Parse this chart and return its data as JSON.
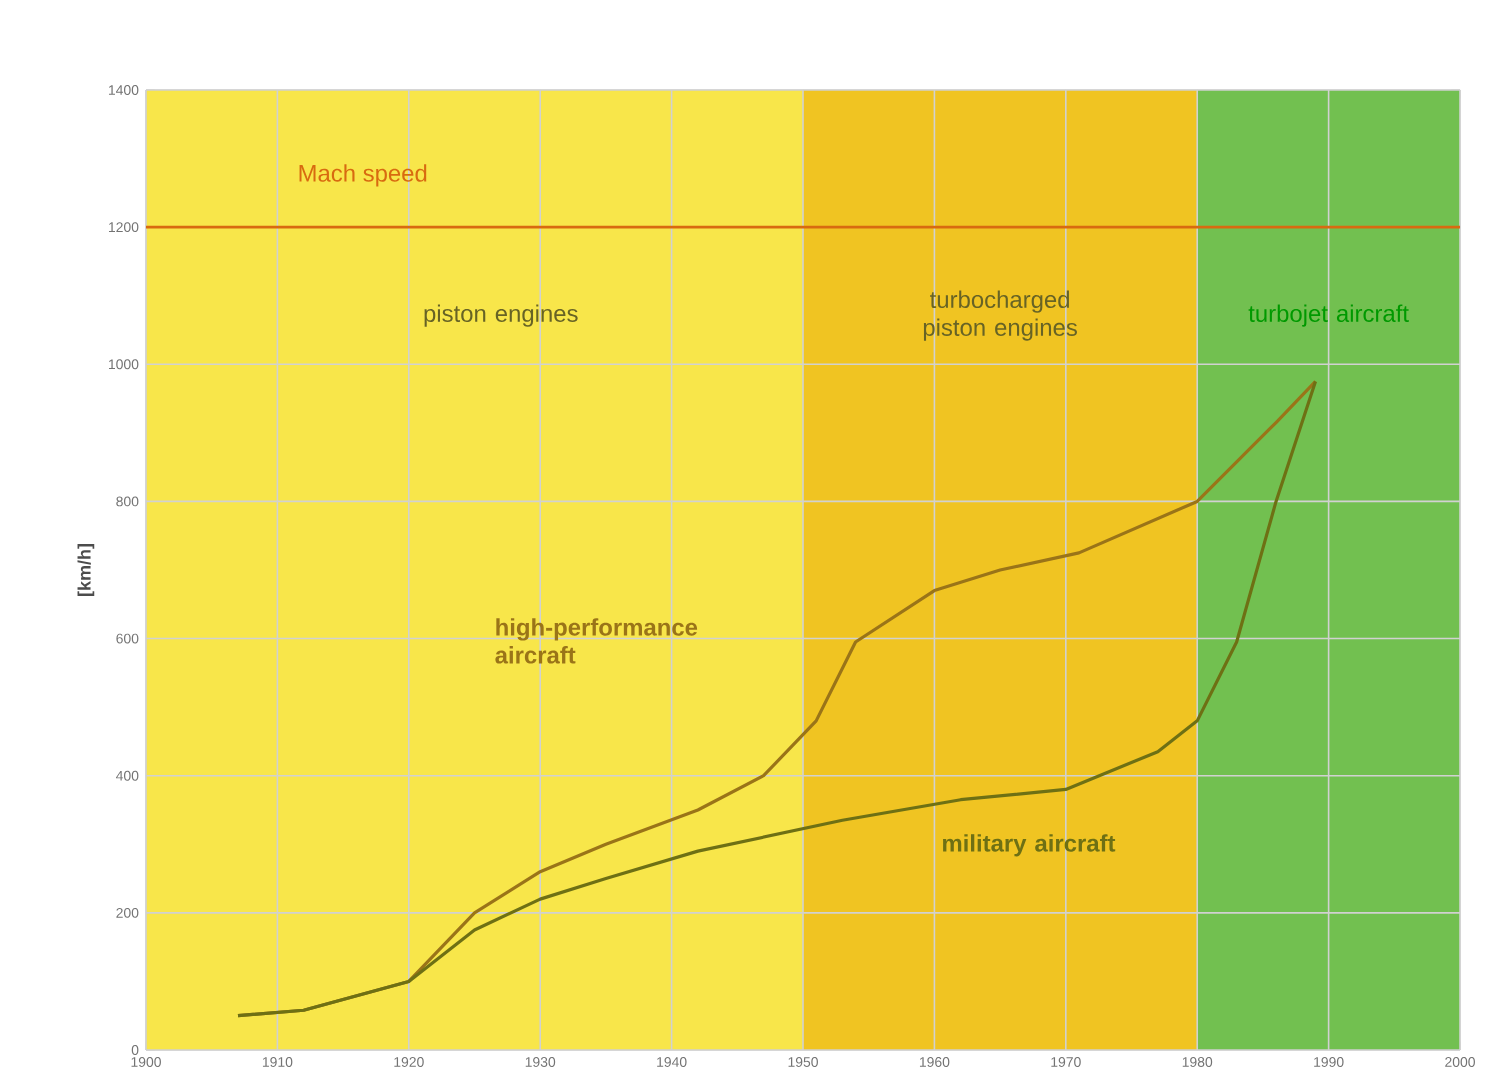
{
  "chart_data": {
    "type": "line",
    "ylabel": "[km/h]",
    "xlim": [
      1900,
      2000
    ],
    "xticks": [
      1900,
      1910,
      1920,
      1930,
      1940,
      1950,
      1960,
      1970,
      1980,
      1990,
      2000
    ],
    "ylim": [
      0,
      1400
    ],
    "yticks": [
      0,
      200,
      400,
      600,
      800,
      1000,
      1200,
      1400
    ],
    "grid": true,
    "bands": [
      {
        "axis": "x",
        "from": 1900,
        "to": 1950,
        "label": "piston engines",
        "color": "#f8e64a"
      },
      {
        "axis": "x",
        "from": 1950,
        "to": 1980,
        "label": "turbocharged piston engines",
        "color": "#f0c422"
      },
      {
        "axis": "x",
        "from": 1980,
        "to": 2000,
        "label": "turbojet aircraft",
        "color": "#72c050"
      }
    ],
    "ref_lines": [
      {
        "axis": "y",
        "value": 1200,
        "label": "Mach speed",
        "color": "#d86a10"
      }
    ],
    "series": [
      {
        "name": "high-performance aircraft",
        "color": "#9a7418",
        "x": [
          1907,
          1912,
          1920,
          1925,
          1930,
          1935,
          1942,
          1947,
          1951,
          1954,
          1960,
          1965,
          1971,
          1980,
          1986,
          1989
        ],
        "values": [
          50,
          58,
          100,
          200,
          260,
          300,
          350,
          400,
          480,
          595,
          670,
          700,
          725,
          800,
          915,
          975
        ]
      },
      {
        "name": "military aircraft",
        "color": "#6e7014",
        "x": [
          1907,
          1912,
          1920,
          1925,
          1930,
          1935,
          1942,
          1953,
          1962,
          1970,
          1977,
          1980,
          1983,
          1986,
          1989
        ],
        "values": [
          50,
          58,
          100,
          175,
          220,
          250,
          290,
          335,
          365,
          380,
          435,
          480,
          595,
          800,
          975
        ]
      }
    ]
  }
}
